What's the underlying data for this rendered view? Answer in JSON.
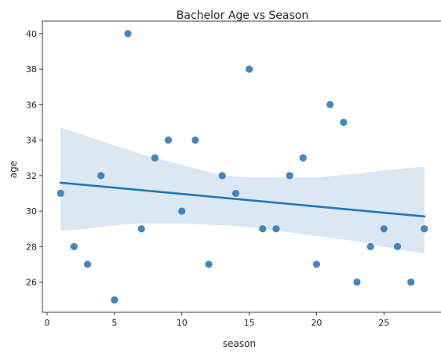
{
  "chart_data": {
    "type": "scatter",
    "title": "Bachelor Age vs Season",
    "xlabel": "season",
    "ylabel": "age",
    "xlim": [
      -0.35,
      29.35
    ],
    "ylim": [
      24.3,
      40.7
    ],
    "xticks": [
      0,
      5,
      10,
      15,
      20,
      25
    ],
    "yticks": [
      26,
      28,
      30,
      32,
      34,
      36,
      38,
      40
    ],
    "grid": false,
    "point_color": "#3a80b8",
    "line_color": "#1f77b4",
    "band_color": "#dbe7f3",
    "points": [
      {
        "x": 1,
        "y": 31
      },
      {
        "x": 2,
        "y": 28
      },
      {
        "x": 3,
        "y": 27
      },
      {
        "x": 4,
        "y": 32
      },
      {
        "x": 5,
        "y": 25
      },
      {
        "x": 6,
        "y": 40
      },
      {
        "x": 7,
        "y": 29
      },
      {
        "x": 8,
        "y": 33
      },
      {
        "x": 9,
        "y": 34
      },
      {
        "x": 10,
        "y": 30
      },
      {
        "x": 11,
        "y": 34
      },
      {
        "x": 12,
        "y": 27
      },
      {
        "x": 13,
        "y": 32
      },
      {
        "x": 14,
        "y": 31
      },
      {
        "x": 15,
        "y": 38
      },
      {
        "x": 16,
        "y": 29
      },
      {
        "x": 17,
        "y": 29
      },
      {
        "x": 18,
        "y": 32
      },
      {
        "x": 19,
        "y": 33
      },
      {
        "x": 20,
        "y": 27
      },
      {
        "x": 21,
        "y": 36
      },
      {
        "x": 22,
        "y": 35
      },
      {
        "x": 23,
        "y": 26
      },
      {
        "x": 24,
        "y": 28
      },
      {
        "x": 25,
        "y": 29
      },
      {
        "x": 26,
        "y": 28
      },
      {
        "x": 27,
        "y": 26
      },
      {
        "x": 28,
        "y": 29
      }
    ],
    "regression": {
      "x": [
        1,
        28
      ],
      "y": [
        31.6,
        29.7
      ]
    },
    "confidence_band": {
      "x": [
        1,
        3,
        5,
        7,
        10,
        13,
        15,
        17,
        20,
        23,
        25,
        28
      ],
      "upper": [
        34.7,
        34.2,
        33.7,
        33.2,
        32.6,
        32.0,
        31.9,
        31.9,
        31.9,
        32.1,
        32.3,
        32.5
      ],
      "lower": [
        28.9,
        29.0,
        29.2,
        29.3,
        29.3,
        29.2,
        29.1,
        28.9,
        28.6,
        28.3,
        28.0,
        27.6
      ]
    }
  }
}
